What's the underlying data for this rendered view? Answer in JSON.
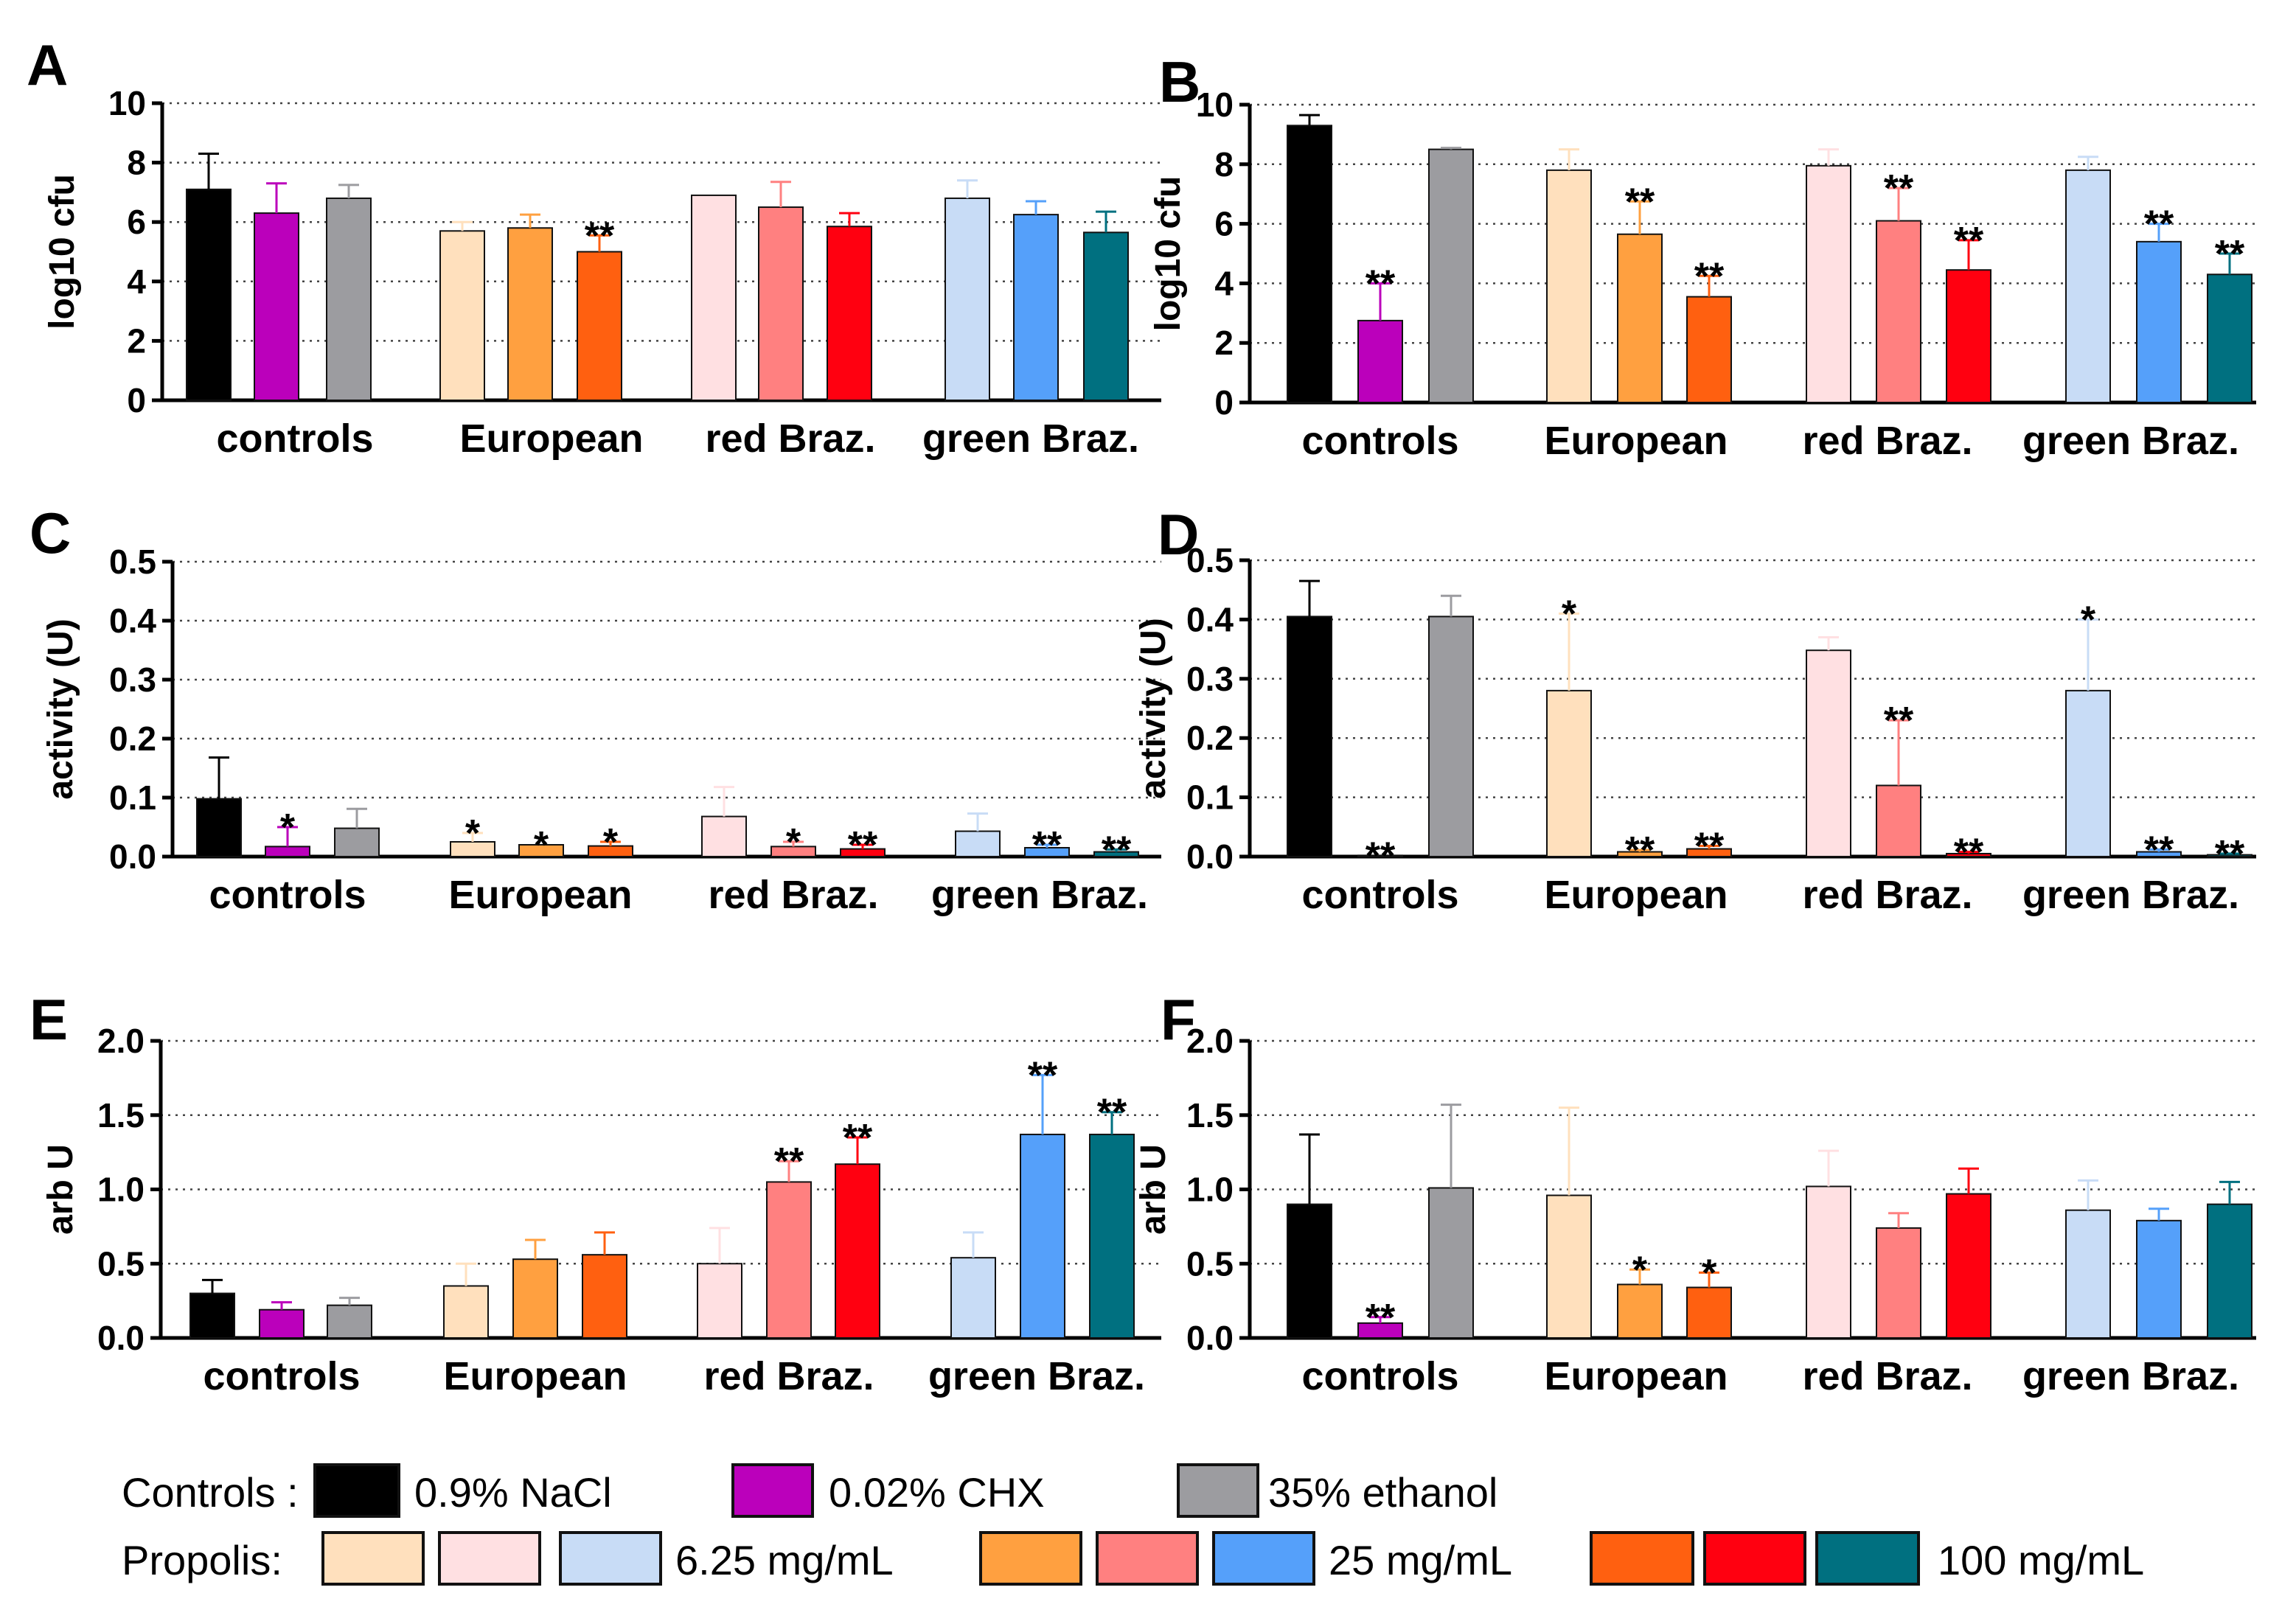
{
  "chart_data": [
    {
      "panel": "A",
      "type": "bar",
      "ylabel": "log10 cfu",
      "ylim": [
        0,
        10
      ],
      "yticks": [
        0,
        2,
        4,
        6,
        8,
        10
      ],
      "ytick_labels": [
        "0",
        "2",
        "4",
        "6",
        "8",
        "10"
      ],
      "grid": "dotted horizontal",
      "groups": [
        {
          "label": "controls",
          "bars": [
            {
              "series": "0.9% NaCl",
              "value": 7.1,
              "err": 1.2,
              "sig": ""
            },
            {
              "series": "0.02% CHX",
              "value": 6.3,
              "err": 1.0,
              "sig": ""
            },
            {
              "series": "35% ethanol",
              "value": 6.8,
              "err": 0.45,
              "sig": ""
            }
          ]
        },
        {
          "label": "European",
          "bars": [
            {
              "series": "European 6.25 mg/mL",
              "value": 5.7,
              "err": 0.3,
              "sig": ""
            },
            {
              "series": "European 25 mg/mL",
              "value": 5.8,
              "err": 0.45,
              "sig": ""
            },
            {
              "series": "European 100 mg/mL",
              "value": 5.0,
              "err": 0.55,
              "sig": "**"
            }
          ]
        },
        {
          "label": "red Braz.",
          "bars": [
            {
              "series": "red Braz. 6.25 mg/mL",
              "value": 6.9,
              "err": 0.0,
              "sig": ""
            },
            {
              "series": "red Braz. 25 mg/mL",
              "value": 6.5,
              "err": 0.85,
              "sig": ""
            },
            {
              "series": "red Braz. 100 mg/mL",
              "value": 5.85,
              "err": 0.45,
              "sig": ""
            }
          ]
        },
        {
          "label": "green Braz.",
          "bars": [
            {
              "series": "green Braz. 6.25 mg/mL",
              "value": 6.8,
              "err": 0.6,
              "sig": ""
            },
            {
              "series": "green Braz. 25 mg/mL",
              "value": 6.25,
              "err": 0.45,
              "sig": ""
            },
            {
              "series": "green Braz. 100 mg/mL",
              "value": 5.65,
              "err": 0.7,
              "sig": ""
            }
          ]
        }
      ]
    },
    {
      "panel": "B",
      "type": "bar",
      "ylabel": "log10 cfu",
      "ylim": [
        0,
        10
      ],
      "yticks": [
        0,
        2,
        4,
        6,
        8,
        10
      ],
      "ytick_labels": [
        "0",
        "2",
        "4",
        "6",
        "8",
        "10"
      ],
      "grid": "dotted horizontal",
      "groups": [
        {
          "label": "controls",
          "bars": [
            {
              "series": "0.9% NaCl",
              "value": 9.3,
              "err": 0.35,
              "sig": ""
            },
            {
              "series": "0.02% CHX",
              "value": 2.75,
              "err": 1.25,
              "sig": "**"
            },
            {
              "series": "35% ethanol",
              "value": 8.5,
              "err": 0.05,
              "sig": ""
            }
          ]
        },
        {
          "label": "European",
          "bars": [
            {
              "series": "European 6.25 mg/mL",
              "value": 7.8,
              "err": 0.7,
              "sig": ""
            },
            {
              "series": "European 25 mg/mL",
              "value": 5.65,
              "err": 1.1,
              "sig": "**"
            },
            {
              "series": "European 100 mg/mL",
              "value": 3.55,
              "err": 0.7,
              "sig": "**"
            }
          ]
        },
        {
          "label": "red Braz.",
          "bars": [
            {
              "series": "red Braz. 6.25 mg/mL",
              "value": 7.95,
              "err": 0.55,
              "sig": ""
            },
            {
              "series": "red Braz. 25 mg/mL",
              "value": 6.1,
              "err": 1.1,
              "sig": "**"
            },
            {
              "series": "red Braz. 100 mg/mL",
              "value": 4.45,
              "err": 1.0,
              "sig": "**"
            }
          ]
        },
        {
          "label": "green Braz.",
          "bars": [
            {
              "series": "green Braz. 6.25 mg/mL",
              "value": 7.8,
              "err": 0.45,
              "sig": ""
            },
            {
              "series": "green Braz. 25 mg/mL",
              "value": 5.4,
              "err": 0.6,
              "sig": "**"
            },
            {
              "series": "green Braz. 100 mg/mL",
              "value": 4.3,
              "err": 0.7,
              "sig": "**"
            }
          ]
        }
      ]
    },
    {
      "panel": "C",
      "type": "bar",
      "ylabel": "activity (U)",
      "ylim": [
        0,
        0.5
      ],
      "yticks": [
        0,
        0.1,
        0.2,
        0.3,
        0.4,
        0.5
      ],
      "ytick_labels": [
        "0.0",
        "0.1",
        "0.2",
        "0.3",
        "0.4",
        "0.5"
      ],
      "grid": "dotted horizontal",
      "groups": [
        {
          "label": "controls",
          "bars": [
            {
              "series": "0.9% NaCl",
              "value": 0.098,
              "err": 0.07,
              "sig": ""
            },
            {
              "series": "0.02% CHX",
              "value": 0.017,
              "err": 0.033,
              "sig": "*"
            },
            {
              "series": "35% ethanol",
              "value": 0.048,
              "err": 0.033,
              "sig": ""
            }
          ]
        },
        {
          "label": "European",
          "bars": [
            {
              "series": "European 6.25 mg/mL",
              "value": 0.025,
              "err": 0.015,
              "sig": "*"
            },
            {
              "series": "European 25 mg/mL",
              "value": 0.02,
              "err": 0.0,
              "sig": "*"
            },
            {
              "series": "European 100 mg/mL",
              "value": 0.018,
              "err": 0.007,
              "sig": "*"
            }
          ]
        },
        {
          "label": "red Braz.",
          "bars": [
            {
              "series": "red Braz. 6.25 mg/mL",
              "value": 0.068,
              "err": 0.05,
              "sig": ""
            },
            {
              "series": "red Braz. 25 mg/mL",
              "value": 0.017,
              "err": 0.008,
              "sig": "*"
            },
            {
              "series": "red Braz. 100 mg/mL",
              "value": 0.013,
              "err": 0.007,
              "sig": "**"
            }
          ]
        },
        {
          "label": "green Braz.",
          "bars": [
            {
              "series": "green Braz. 6.25 mg/mL",
              "value": 0.043,
              "err": 0.03,
              "sig": ""
            },
            {
              "series": "green Braz. 25 mg/mL",
              "value": 0.015,
              "err": 0.005,
              "sig": "**"
            },
            {
              "series": "green Braz. 100 mg/mL",
              "value": 0.008,
              "err": 0.004,
              "sig": "**"
            }
          ]
        }
      ]
    },
    {
      "panel": "D",
      "type": "bar",
      "ylabel": "activity (U)",
      "ylim": [
        0,
        0.5
      ],
      "yticks": [
        0,
        0.1,
        0.2,
        0.3,
        0.4,
        0.5
      ],
      "ytick_labels": [
        "0.0",
        "0.1",
        "0.2",
        "0.3",
        "0.4",
        "0.5"
      ],
      "grid": "dotted horizontal",
      "groups": [
        {
          "label": "controls",
          "bars": [
            {
              "series": "0.9% NaCl",
              "value": 0.405,
              "err": 0.06,
              "sig": ""
            },
            {
              "series": "0.02% CHX",
              "value": 0.002,
              "err": 0.0,
              "sig": "**"
            },
            {
              "series": "35% ethanol",
              "value": 0.405,
              "err": 0.035,
              "sig": ""
            }
          ]
        },
        {
          "label": "European",
          "bars": [
            {
              "series": "European 6.25 mg/mL",
              "value": 0.28,
              "err": 0.13,
              "sig": "*"
            },
            {
              "series": "European 25 mg/mL",
              "value": 0.008,
              "err": 0.003,
              "sig": "**"
            },
            {
              "series": "European 100 mg/mL",
              "value": 0.013,
              "err": 0.005,
              "sig": "**"
            }
          ]
        },
        {
          "label": "red Braz.",
          "bars": [
            {
              "series": "red Braz. 6.25 mg/mL",
              "value": 0.348,
              "err": 0.022,
              "sig": ""
            },
            {
              "series": "red Braz. 25 mg/mL",
              "value": 0.12,
              "err": 0.11,
              "sig": "**"
            },
            {
              "series": "red Braz. 100 mg/mL",
              "value": 0.005,
              "err": 0.003,
              "sig": "**"
            }
          ]
        },
        {
          "label": "green Braz.",
          "bars": [
            {
              "series": "green Braz. 6.25 mg/mL",
              "value": 0.28,
              "err": 0.12,
              "sig": "*"
            },
            {
              "series": "green Braz. 25 mg/mL",
              "value": 0.008,
              "err": 0.004,
              "sig": "**"
            },
            {
              "series": "green Braz. 100 mg/mL",
              "value": 0.003,
              "err": 0.002,
              "sig": "**"
            }
          ]
        }
      ]
    },
    {
      "panel": "E",
      "type": "bar",
      "ylabel": "arb U",
      "ylim": [
        0,
        2.0
      ],
      "yticks": [
        0,
        0.5,
        1.0,
        1.5,
        2.0
      ],
      "ytick_labels": [
        "0.0",
        "0.5",
        "1.0",
        "1.5",
        "2.0"
      ],
      "grid": "dotted horizontal",
      "groups": [
        {
          "label": "controls",
          "bars": [
            {
              "series": "0.9% NaCl",
              "value": 0.3,
              "err": 0.09,
              "sig": ""
            },
            {
              "series": "0.02% CHX",
              "value": 0.19,
              "err": 0.05,
              "sig": ""
            },
            {
              "series": "35% ethanol",
              "value": 0.22,
              "err": 0.05,
              "sig": ""
            }
          ]
        },
        {
          "label": "European",
          "bars": [
            {
              "series": "European 6.25 mg/mL",
              "value": 0.35,
              "err": 0.15,
              "sig": ""
            },
            {
              "series": "European 25 mg/mL",
              "value": 0.53,
              "err": 0.13,
              "sig": ""
            },
            {
              "series": "European 100 mg/mL",
              "value": 0.56,
              "err": 0.15,
              "sig": ""
            }
          ]
        },
        {
          "label": "red Braz.",
          "bars": [
            {
              "series": "red Braz. 6.25 mg/mL",
              "value": 0.5,
              "err": 0.24,
              "sig": ""
            },
            {
              "series": "red Braz. 25 mg/mL",
              "value": 1.05,
              "err": 0.14,
              "sig": "**"
            },
            {
              "series": "red Braz. 100 mg/mL",
              "value": 1.17,
              "err": 0.18,
              "sig": "**"
            }
          ]
        },
        {
          "label": "green Braz.",
          "bars": [
            {
              "series": "green Braz. 6.25 mg/mL",
              "value": 0.54,
              "err": 0.17,
              "sig": ""
            },
            {
              "series": "green Braz. 25 mg/mL",
              "value": 1.37,
              "err": 0.4,
              "sig": "**"
            },
            {
              "series": "green Braz. 100 mg/mL",
              "value": 1.37,
              "err": 0.15,
              "sig": "**"
            }
          ]
        }
      ]
    },
    {
      "panel": "F",
      "type": "bar",
      "ylabel": "arb U",
      "ylim": [
        0,
        2.0
      ],
      "yticks": [
        0,
        0.5,
        1.0,
        1.5,
        2.0
      ],
      "ytick_labels": [
        "0.0",
        "0.5",
        "1.0",
        "1.5",
        "2.0"
      ],
      "grid": "dotted horizontal",
      "groups": [
        {
          "label": "controls",
          "bars": [
            {
              "series": "0.9% NaCl",
              "value": 0.9,
              "err": 0.47,
              "sig": ""
            },
            {
              "series": "0.02% CHX",
              "value": 0.1,
              "err": 0.04,
              "sig": "**"
            },
            {
              "series": "35% ethanol",
              "value": 1.01,
              "err": 0.56,
              "sig": ""
            }
          ]
        },
        {
          "label": "European",
          "bars": [
            {
              "series": "European 6.25 mg/mL",
              "value": 0.96,
              "err": 0.59,
              "sig": ""
            },
            {
              "series": "European 25 mg/mL",
              "value": 0.36,
              "err": 0.1,
              "sig": "*"
            },
            {
              "series": "European 100 mg/mL",
              "value": 0.34,
              "err": 0.1,
              "sig": "*"
            }
          ]
        },
        {
          "label": "red Braz.",
          "bars": [
            {
              "series": "red Braz. 6.25 mg/mL",
              "value": 1.02,
              "err": 0.24,
              "sig": ""
            },
            {
              "series": "red Braz. 25 mg/mL",
              "value": 0.74,
              "err": 0.1,
              "sig": ""
            },
            {
              "series": "red Braz. 100 mg/mL",
              "value": 0.97,
              "err": 0.17,
              "sig": ""
            }
          ]
        },
        {
          "label": "green Braz.",
          "bars": [
            {
              "series": "green Braz. 6.25 mg/mL",
              "value": 0.86,
              "err": 0.2,
              "sig": ""
            },
            {
              "series": "green Braz. 25 mg/mL",
              "value": 0.79,
              "err": 0.08,
              "sig": ""
            },
            {
              "series": "green Braz. 100 mg/mL",
              "value": 0.9,
              "err": 0.15,
              "sig": ""
            }
          ]
        }
      ]
    }
  ],
  "colors": {
    "0.9% NaCl": "#000000",
    "0.02% CHX": "#bb00bb",
    "35% ethanol": "#9c9ca0",
    "European 6.25 mg/mL": "#ffe0bd",
    "European 25 mg/mL": "#ffa040",
    "European 100 mg/mL": "#ff6010",
    "red Braz. 6.25 mg/mL": "#ffe0e2",
    "red Braz. 25 mg/mL": "#ff8080",
    "red Braz. 100 mg/mL": "#ff0010",
    "green Braz. 6.25 mg/mL": "#c8dcf6",
    "green Braz. 25 mg/mL": "#55a0fa",
    "green Braz. 100 mg/mL": "#007080"
  },
  "legend": {
    "controls_label": "Controls :",
    "propolis_label": "Propolis:",
    "nacl": "0.9% NaCl",
    "chx": "0.02% CHX",
    "ethanol": "35% ethanol",
    "dose_low": "6.25 mg/mL",
    "dose_mid": "25 mg/mL",
    "dose_high": "100 mg/mL"
  }
}
